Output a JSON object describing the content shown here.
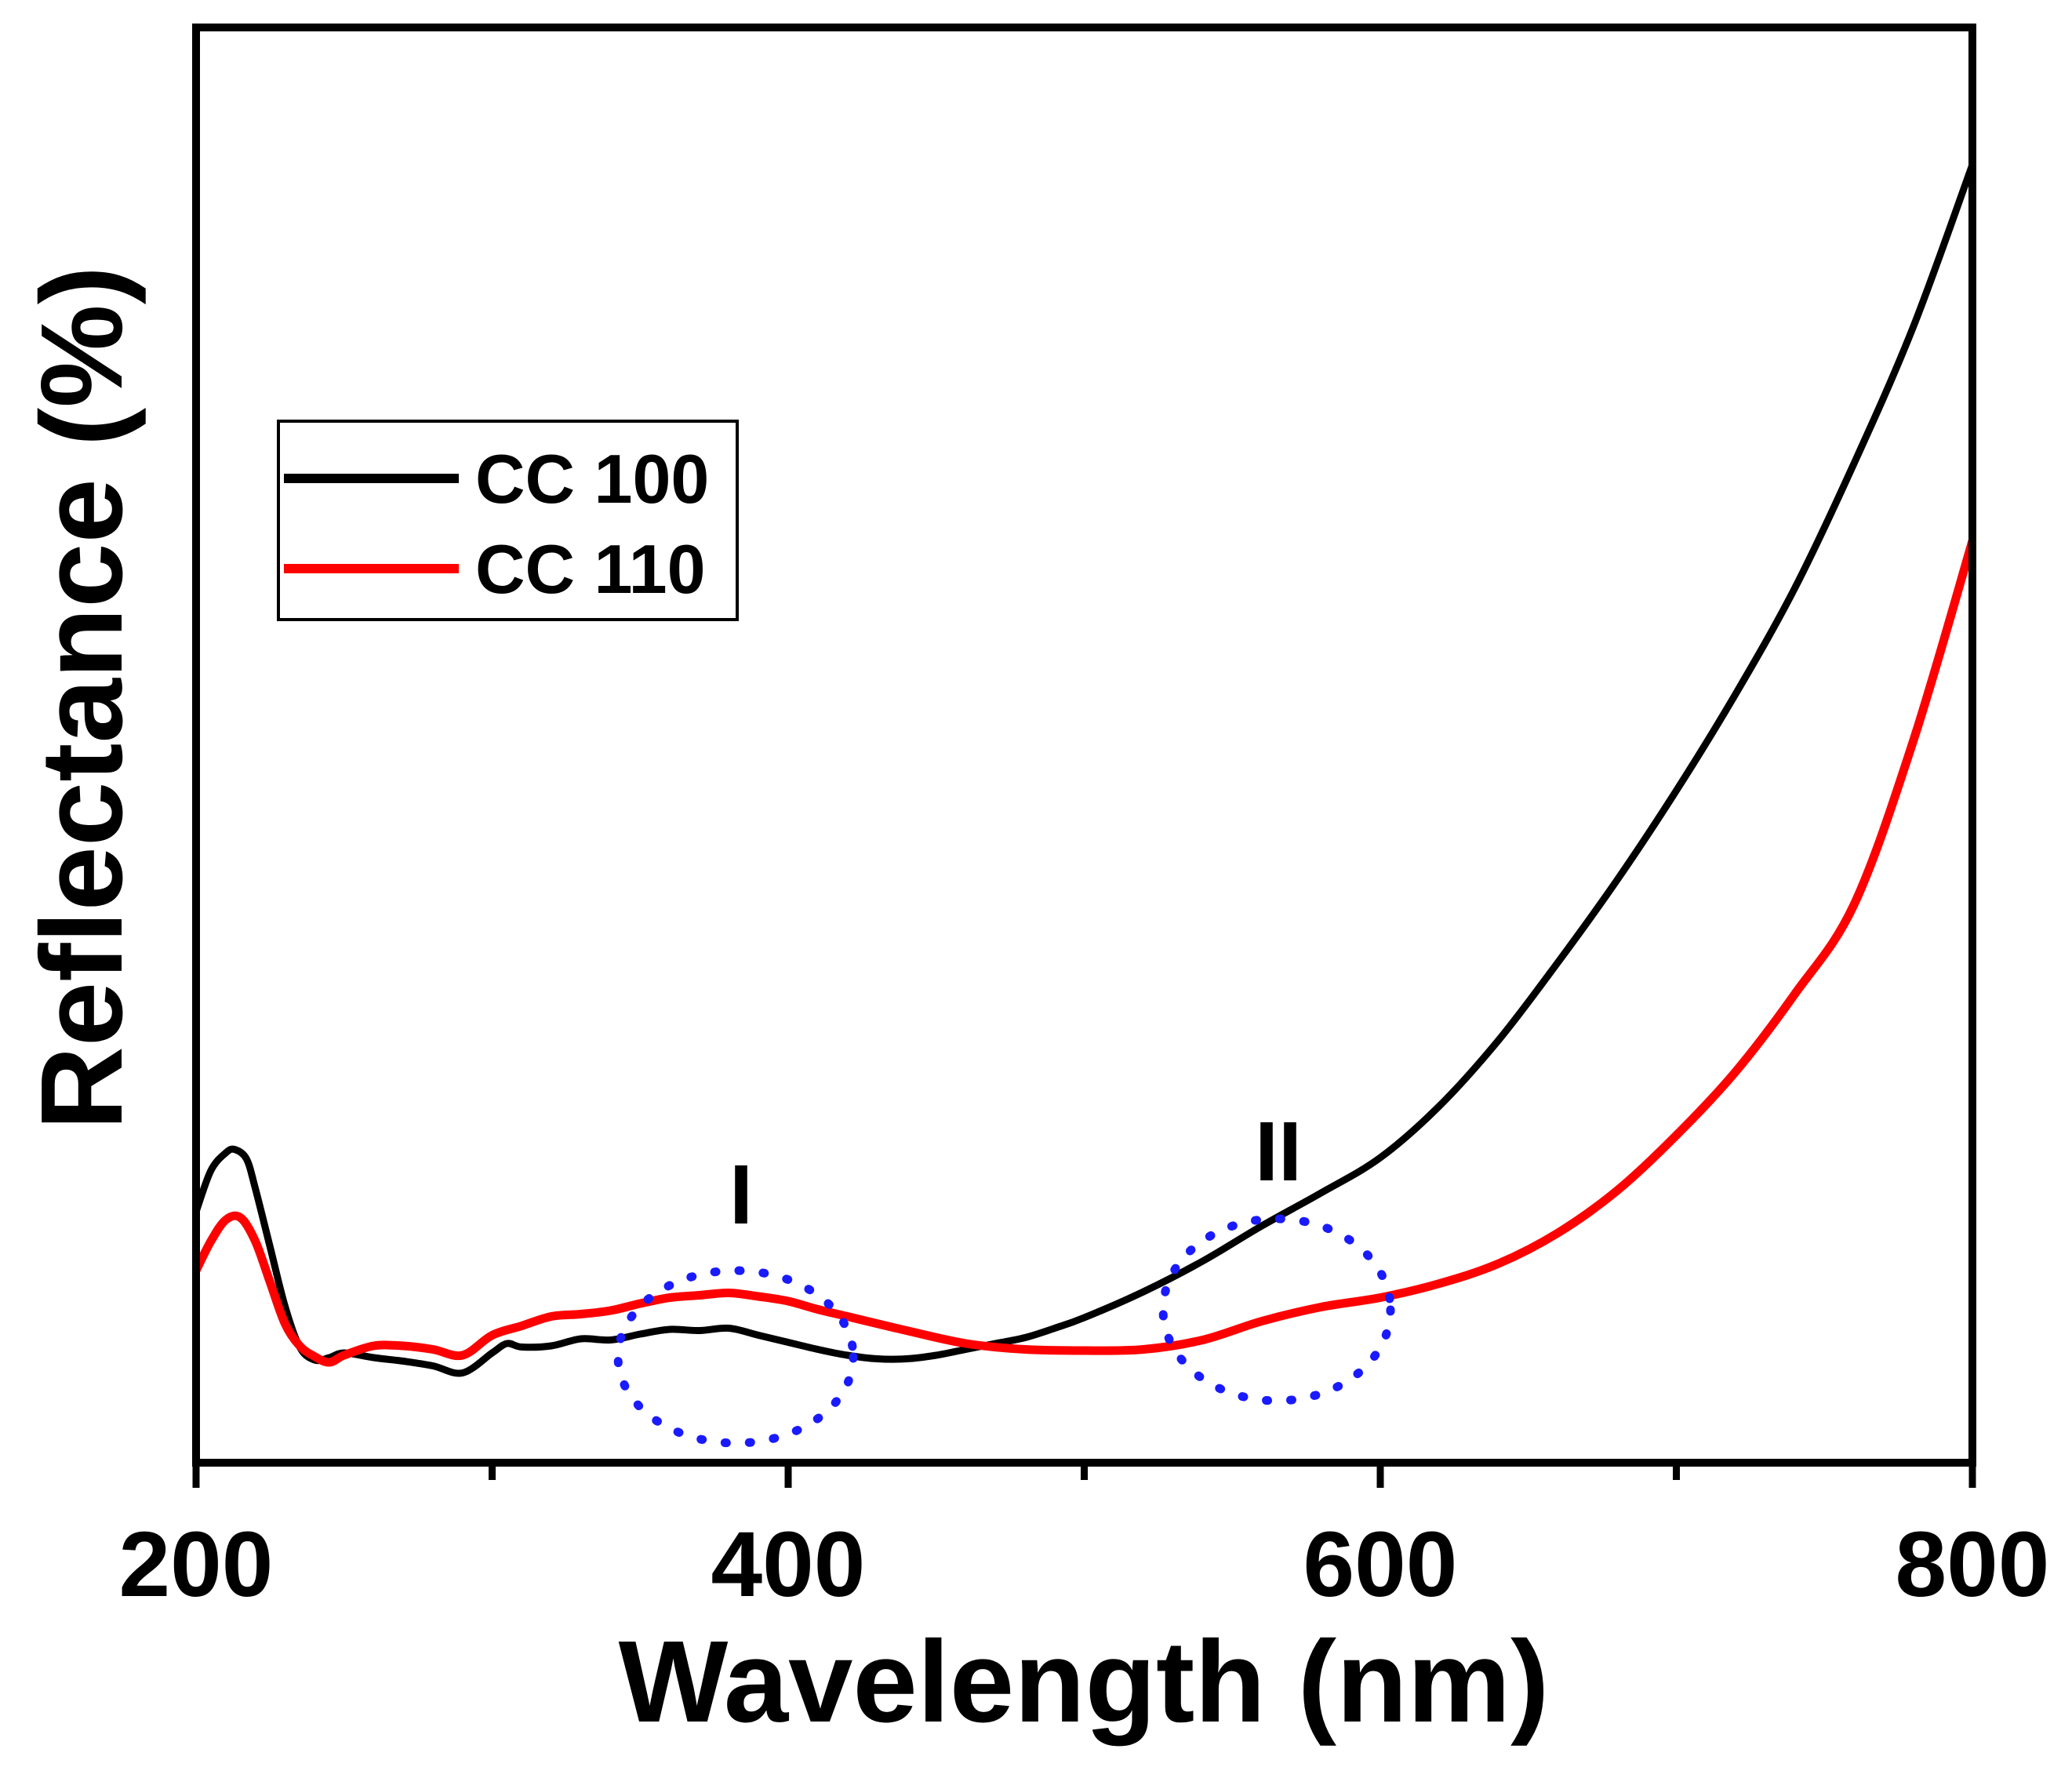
{
  "chart_data": {
    "type": "line",
    "title": "",
    "xlabel": "Wavelength (nm)",
    "ylabel": "Reflectance (%)",
    "xlim": [
      200,
      800
    ],
    "ylim": [
      0,
      100
    ],
    "xticks": [
      200,
      400,
      600,
      800
    ],
    "xtick_labels": [
      "200",
      "400",
      "600",
      "800"
    ],
    "grid": false,
    "legend_position": "upper-left",
    "series": [
      {
        "name": "CC 100",
        "color": "#000000",
        "x": [
          200,
          205,
          210,
          213,
          217,
          220,
          225,
          230,
          235,
          240,
          245,
          250,
          260,
          270,
          280,
          290,
          300,
          305,
          310,
          320,
          330,
          340,
          350,
          360,
          370,
          380,
          390,
          400,
          410,
          420,
          430,
          440,
          450,
          460,
          470,
          480,
          490,
          500,
          520,
          540,
          560,
          580,
          600,
          620,
          640,
          660,
          680,
          700,
          720,
          740,
          760,
          780,
          800
        ],
        "y": [
          18,
          21.5,
          23,
          23.3,
          22.5,
          20,
          15,
          10,
          6.5,
          5.4,
          5.6,
          6,
          5.6,
          5.3,
          4.9,
          4.3,
          6,
          6.8,
          6.5,
          6.6,
          7.2,
          7.1,
          7.6,
          8,
          7.9,
          8.1,
          7.5,
          6.9,
          6.3,
          5.8,
          5.5,
          5.5,
          5.8,
          6.3,
          6.8,
          7.3,
          8.1,
          9,
          11.2,
          13.8,
          16.8,
          19.6,
          22.6,
          27,
          32.6,
          39.2,
          46.2,
          53.8,
          62,
          71,
          81.6,
          93.2,
          107
        ]
      },
      {
        "name": "CC 110",
        "color": "#ff0000",
        "x": [
          200,
          205,
          210,
          215,
          220,
          225,
          230,
          235,
          240,
          245,
          250,
          260,
          270,
          280,
          290,
          300,
          310,
          320,
          330,
          340,
          350,
          360,
          370,
          380,
          390,
          400,
          410,
          420,
          440,
          460,
          480,
          500,
          520,
          540,
          560,
          580,
          600,
          620,
          640,
          660,
          680,
          700,
          720,
          740,
          760,
          780,
          800
        ],
        "y": [
          13,
          15.5,
          17.3,
          17.5,
          15.5,
          12,
          8.5,
          6.6,
          5.7,
          5.2,
          5.8,
          6.6,
          6.6,
          6.3,
          5.8,
          7.5,
          8.3,
          9.1,
          9.3,
          9.6,
          10.2,
          10.7,
          10.9,
          11.1,
          10.8,
          10.4,
          9.7,
          9.1,
          7.9,
          6.8,
          6.3,
          6.2,
          6.3,
          7.1,
          8.7,
          9.9,
          10.7,
          11.9,
          13.6,
          16.2,
          19.8,
          24.5,
          29.9,
          36.5,
          44.1,
          58,
          75
        ]
      }
    ],
    "annotations": [
      {
        "label": "I",
        "x": 381,
        "y": 8
      },
      {
        "label": "II",
        "x": 563,
        "y": 12.8
      }
    ]
  }
}
